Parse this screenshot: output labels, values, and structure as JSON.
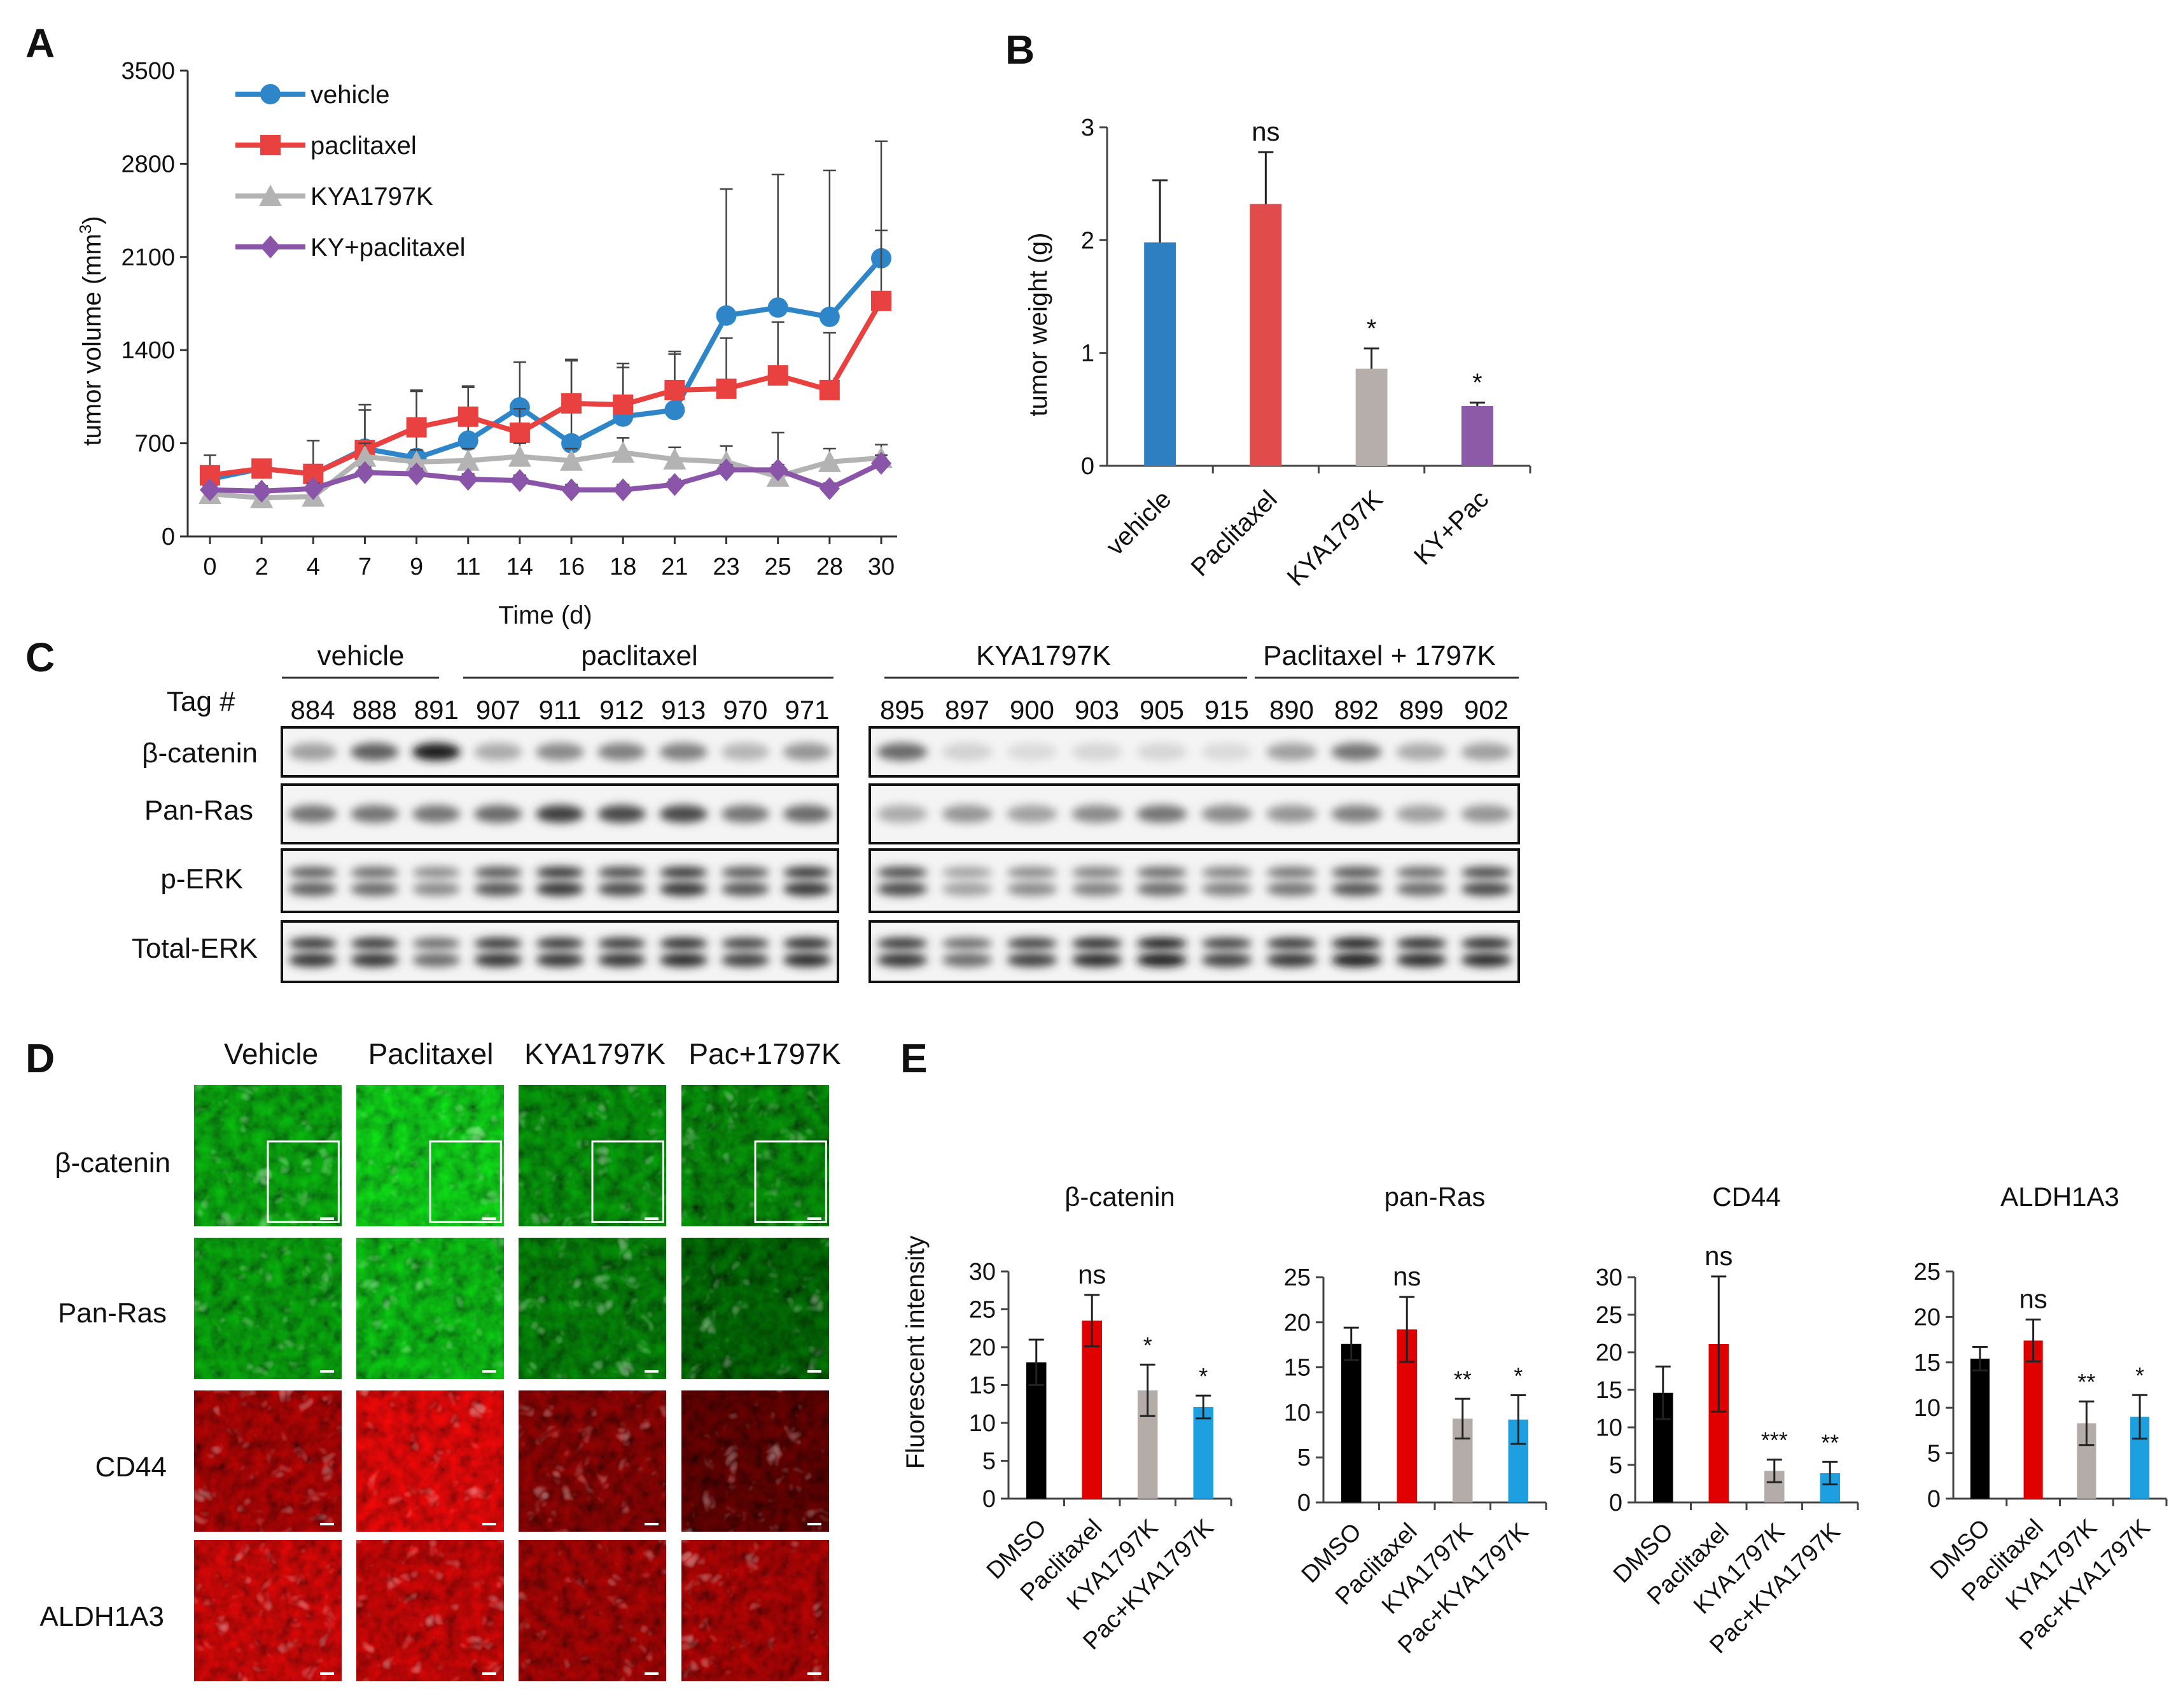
{
  "figure": {
    "panel_letters": [
      "A",
      "B",
      "C",
      "D",
      "E"
    ]
  },
  "chart_data": [
    {
      "id": "A",
      "type": "line",
      "title": "",
      "xlabel": "Time (d)",
      "ylabel": "tumor volume (mm3)",
      "ylabel_parts": [
        "tumor volume (mm",
        "3",
        ")"
      ],
      "categories": [
        "0",
        "2",
        "4",
        "7",
        "9",
        "11",
        "14",
        "16",
        "18",
        "21",
        "23",
        "25",
        "28",
        "30"
      ],
      "ylim": [
        0,
        3500
      ],
      "yticks": [
        0,
        700,
        1400,
        2100,
        2800,
        3500
      ],
      "legend_position": "top-left",
      "series": [
        {
          "name": "vehicle",
          "color": "#2e86c8",
          "marker": "circle",
          "values": [
            430,
            510,
            470,
            660,
            590,
            720,
            970,
            700,
            900,
            950,
            1660,
            1720,
            1650,
            2090
          ],
          "errors": [
            180,
            60,
            250,
            330,
            500,
            400,
            340,
            630,
            400,
            420,
            950,
            1000,
            1100,
            880
          ]
        },
        {
          "name": "paclitaxel",
          "color": "#e8413f",
          "marker": "square",
          "values": [
            460,
            510,
            470,
            650,
            820,
            900,
            780,
            1000,
            990,
            1100,
            1110,
            1210,
            1100,
            1770
          ],
          "errors": [
            60,
            50,
            60,
            300,
            280,
            230,
            180,
            320,
            280,
            290,
            380,
            400,
            430,
            530
          ]
        },
        {
          "name": "KYA1797K",
          "color": "#b3b3b3",
          "marker": "triangle",
          "values": [
            320,
            290,
            300,
            600,
            560,
            570,
            600,
            570,
            630,
            580,
            560,
            450,
            560,
            590
          ],
          "errors": [
            30,
            40,
            60,
            100,
            90,
            90,
            100,
            90,
            110,
            90,
            120,
            330,
            100,
            100
          ]
        },
        {
          "name": "KY+paclitaxel",
          "color": "#8a55a8",
          "marker": "diamond",
          "values": [
            350,
            340,
            360,
            480,
            470,
            430,
            420,
            350,
            350,
            390,
            500,
            500,
            360,
            550
          ],
          "errors": [
            30,
            40,
            40,
            40,
            40,
            40,
            40,
            40,
            40,
            40,
            40,
            40,
            40,
            60
          ]
        }
      ]
    },
    {
      "id": "B",
      "type": "bar",
      "title": "",
      "xlabel": "",
      "ylabel": "tumor weight (g)",
      "ylim": [
        0,
        3
      ],
      "yticks": [
        0,
        1,
        2,
        3
      ],
      "categories": [
        "vehicle",
        "Paclitaxel",
        "KYA1797K",
        "KY+Pac"
      ],
      "values": [
        1.98,
        2.32,
        0.86,
        0.53
      ],
      "errors": [
        0.55,
        0.46,
        0.18,
        0.03
      ],
      "colors": [
        "#2e7fc1",
        "#e14b4b",
        "#b5aeab",
        "#8d5aa8"
      ],
      "annotations": [
        "",
        "ns",
        "*",
        "*"
      ]
    },
    {
      "id": "E1",
      "type": "bar",
      "title": "β-catenin",
      "ylabel": "Fluorescent intensity",
      "ylim": [
        0,
        30
      ],
      "yticks": [
        0,
        5,
        10,
        15,
        20,
        25,
        30
      ],
      "categories": [
        "DMSO",
        "Paclitaxel",
        "KYA1797K",
        "Pac+KYA1797K"
      ],
      "values": [
        18,
        23.5,
        14.3,
        12.1
      ],
      "errors": [
        3,
        3.4,
        3.4,
        1.5
      ],
      "colors": [
        "#000000",
        "#e00000",
        "#b3aca8",
        "#1ea0e0"
      ],
      "annotations": [
        "",
        "ns",
        "*",
        "*"
      ]
    },
    {
      "id": "E2",
      "type": "bar",
      "title": "pan-Ras",
      "ylabel": "",
      "ylim": [
        0,
        25
      ],
      "yticks": [
        0,
        5,
        10,
        15,
        20,
        25
      ],
      "categories": [
        "DMSO",
        "Paclitaxel",
        "KYA1797K",
        "Pac+KYA1797K"
      ],
      "values": [
        17.6,
        19.2,
        9.3,
        9.2
      ],
      "errors": [
        1.8,
        3.6,
        2.2,
        2.7
      ],
      "colors": [
        "#000000",
        "#e00000",
        "#b3aca8",
        "#1ea0e0"
      ],
      "annotations": [
        "",
        "ns",
        "**",
        "*"
      ]
    },
    {
      "id": "E3",
      "type": "bar",
      "title": "CD44",
      "ylabel": "",
      "ylim": [
        0,
        30
      ],
      "yticks": [
        0,
        5,
        10,
        15,
        20,
        25,
        30
      ],
      "categories": [
        "DMSO",
        "Paclitaxel",
        "KYA1797K",
        "Pac+KYA1797K"
      ],
      "values": [
        14.6,
        21.1,
        4.2,
        3.9
      ],
      "errors": [
        3.5,
        9,
        1.5,
        1.5
      ],
      "colors": [
        "#000000",
        "#e00000",
        "#b3aca8",
        "#1ea0e0"
      ],
      "annotations": [
        "",
        "ns",
        "***",
        "**"
      ]
    },
    {
      "id": "E4",
      "type": "bar",
      "title": "ALDH1A3",
      "ylabel": "",
      "ylim": [
        0,
        25
      ],
      "yticks": [
        0,
        5,
        10,
        15,
        20,
        25
      ],
      "categories": [
        "DMSO",
        "Paclitaxel",
        "KYA1797K",
        "Pac+KYA1797K"
      ],
      "values": [
        15.4,
        17.4,
        8.3,
        9
      ],
      "errors": [
        1.3,
        2.3,
        2.4,
        2.4
      ],
      "colors": [
        "#000000",
        "#e00000",
        "#b3aca8",
        "#1ea0e0"
      ],
      "annotations": [
        "",
        "ns",
        "**",
        "*"
      ]
    }
  ],
  "panelC": {
    "group_labels": [
      "vehicle",
      "paclitaxel",
      "KYA1797K",
      "Paclitaxel + 1797K"
    ],
    "tag_label": "Tag #",
    "tags_left": [
      "884",
      "888",
      "891",
      "907",
      "911",
      "912",
      "913",
      "970",
      "971"
    ],
    "tags_right": [
      "895",
      "897",
      "900",
      "903",
      "905",
      "915",
      "890",
      "892",
      "899",
      "902"
    ],
    "rows": [
      "β-catenin",
      "Pan-Ras",
      "p-ERK",
      "Total-ERK"
    ],
    "intensity_left": [
      [
        0.35,
        0.65,
        0.95,
        0.3,
        0.45,
        0.5,
        0.5,
        0.25,
        0.4
      ],
      [
        0.55,
        0.55,
        0.55,
        0.6,
        0.8,
        0.75,
        0.75,
        0.55,
        0.6
      ],
      [
        0.65,
        0.6,
        0.45,
        0.7,
        0.85,
        0.75,
        0.85,
        0.7,
        0.85
      ],
      [
        0.85,
        0.85,
        0.6,
        0.85,
        0.85,
        0.85,
        0.9,
        0.8,
        0.9
      ]
    ],
    "intensity_right": [
      [
        0.6,
        0.12,
        0.08,
        0.1,
        0.1,
        0.08,
        0.35,
        0.55,
        0.3,
        0.35
      ],
      [
        0.3,
        0.4,
        0.35,
        0.45,
        0.55,
        0.45,
        0.4,
        0.5,
        0.35,
        0.4
      ],
      [
        0.75,
        0.35,
        0.45,
        0.5,
        0.6,
        0.5,
        0.55,
        0.7,
        0.6,
        0.75
      ],
      [
        0.85,
        0.6,
        0.8,
        0.9,
        0.95,
        0.8,
        0.85,
        0.95,
        0.9,
        0.9
      ]
    ]
  },
  "panelD": {
    "columns": [
      "Vehicle",
      "Paclitaxel",
      "KYA1797K",
      "Pac+1797K"
    ],
    "rows": [
      {
        "label": "β-catenin",
        "stain": "green",
        "intensity": [
          0.55,
          0.85,
          0.4,
          0.35
        ],
        "inset": true
      },
      {
        "label": "Pan-Ras",
        "stain": "green",
        "intensity": [
          0.5,
          0.7,
          0.3,
          0.15
        ],
        "inset": false
      },
      {
        "label": "CD44",
        "stain": "red",
        "intensity": [
          0.5,
          0.9,
          0.3,
          0.1
        ],
        "inset": false
      },
      {
        "label": "ALDH1A3",
        "stain": "red",
        "intensity": [
          0.75,
          0.7,
          0.45,
          0.5
        ],
        "inset": false
      }
    ]
  }
}
